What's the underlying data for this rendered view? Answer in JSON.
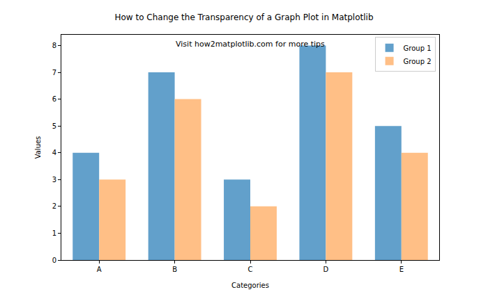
{
  "chart_data": {
    "type": "bar",
    "title": "How to Change the Transparency of a Graph Plot in Matplotlib",
    "annotations": [
      "Visit how2matplotlib.com for more tips"
    ],
    "x_label": "Categories",
    "y_label": "Values",
    "categories": [
      "A",
      "B",
      "C",
      "D",
      "E"
    ],
    "series": [
      {
        "name": "Group 1",
        "color": "#62a0cb",
        "values": [
          4,
          7,
          3,
          8,
          5
        ]
      },
      {
        "name": "Group 2",
        "color": "#ffbf86",
        "values": [
          3,
          6,
          2,
          7,
          4
        ]
      }
    ],
    "ylim": [
      0,
      8.4
    ],
    "yticks": [
      0,
      1,
      2,
      3,
      4,
      5,
      6,
      7,
      8
    ],
    "grid": false,
    "legend": "upper right"
  }
}
